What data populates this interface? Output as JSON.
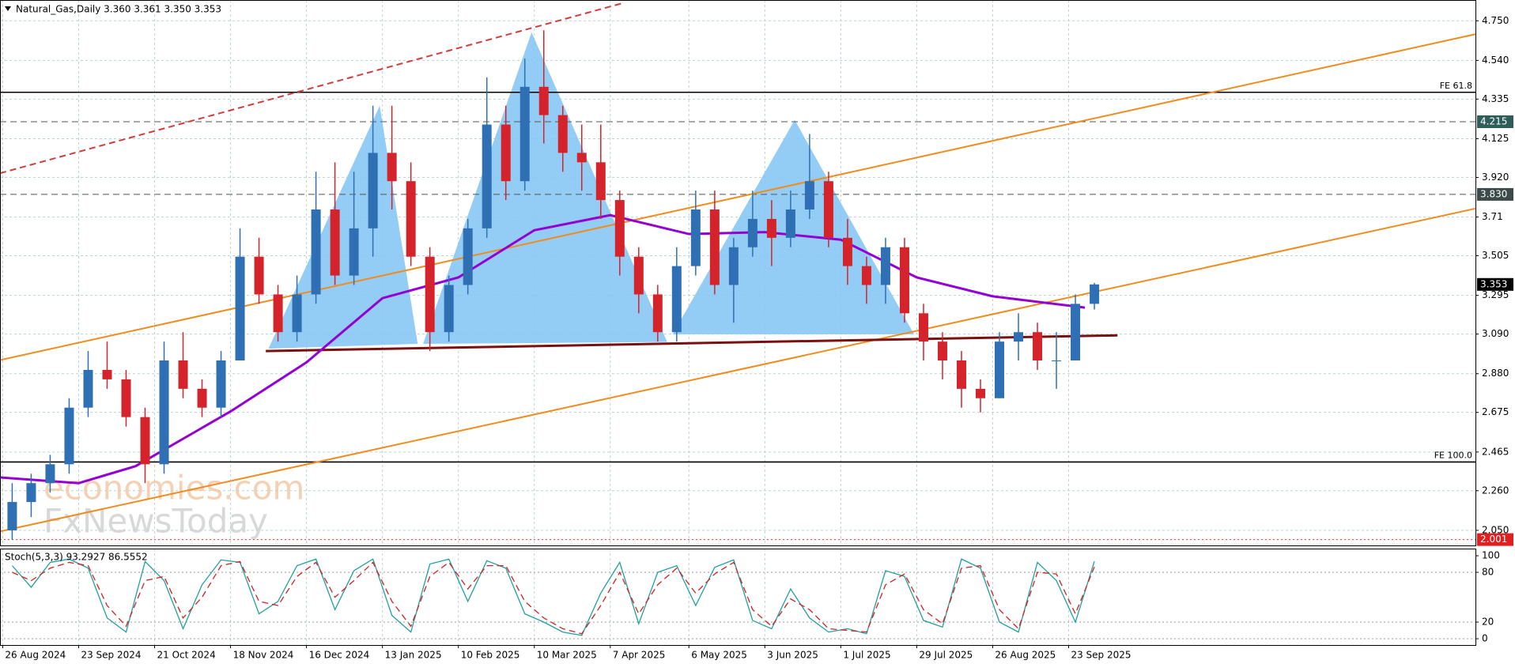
{
  "chart_data": {
    "type": "candlestick",
    "title": "Natural_Gas,Daily  3.360 3.361 3.350 3.353",
    "x": [
      "2024-08-26",
      "2024-09-02",
      "2024-09-09",
      "2024-09-16",
      "2024-09-23",
      "2024-09-30",
      "2024-10-07",
      "2024-10-14",
      "2024-10-21",
      "2024-10-28",
      "2024-11-04",
      "2024-11-11",
      "2024-11-18",
      "2024-11-25",
      "2024-12-02",
      "2024-12-09",
      "2024-12-16",
      "2024-12-23",
      "2024-12-30",
      "2025-01-06",
      "2025-01-13",
      "2025-01-20",
      "2025-01-27",
      "2025-02-03",
      "2025-02-10",
      "2025-02-17",
      "2025-02-24",
      "2025-03-03",
      "2025-03-10",
      "2025-03-17",
      "2025-03-24",
      "2025-03-31",
      "2025-04-07",
      "2025-04-14",
      "2025-04-21",
      "2025-04-28",
      "2025-05-05",
      "2025-05-12",
      "2025-05-19",
      "2025-05-26",
      "2025-06-02",
      "2025-06-09",
      "2025-06-16",
      "2025-06-23",
      "2025-06-30",
      "2025-07-07",
      "2025-07-14",
      "2025-07-21",
      "2025-07-28",
      "2025-08-04",
      "2025-08-11",
      "2025-08-18",
      "2025-08-25",
      "2025-09-01",
      "2025-09-08",
      "2025-09-15",
      "2025-09-22",
      "2025-09-29"
    ],
    "open": [
      2.05,
      2.2,
      2.3,
      2.4,
      2.7,
      2.9,
      2.85,
      2.65,
      2.4,
      2.95,
      2.8,
      2.7,
      2.95,
      3.5,
      3.3,
      3.1,
      3.3,
      3.75,
      3.4,
      3.65,
      4.05,
      3.9,
      3.5,
      3.1,
      3.35,
      3.65,
      4.2,
      3.9,
      4.4,
      4.25,
      4.05,
      4.0,
      3.8,
      3.5,
      3.3,
      3.1,
      3.45,
      3.75,
      3.35,
      3.55,
      3.7,
      3.6,
      3.75,
      3.9,
      3.6,
      3.45,
      3.35,
      3.55,
      3.2,
      3.05,
      2.95,
      2.8,
      2.75,
      3.05,
      3.1,
      2.95,
      2.95,
      3.25
    ],
    "high": [
      2.3,
      2.35,
      2.45,
      2.75,
      3.0,
      3.05,
      2.9,
      2.7,
      3.05,
      3.1,
      2.85,
      3.0,
      3.65,
      3.6,
      3.35,
      3.4,
      3.95,
      4.0,
      3.95,
      4.3,
      4.3,
      4.0,
      3.55,
      3.4,
      3.7,
      4.45,
      4.3,
      4.55,
      4.7,
      4.3,
      4.2,
      4.2,
      3.85,
      3.55,
      3.35,
      3.55,
      3.85,
      3.85,
      3.6,
      3.85,
      3.8,
      3.85,
      4.15,
      3.95,
      3.7,
      3.5,
      3.6,
      3.6,
      3.25,
      3.1,
      3.0,
      2.85,
      3.1,
      3.2,
      3.15,
      3.1,
      3.3,
      3.361
    ],
    "low": [
      2.0,
      2.12,
      2.25,
      2.35,
      2.65,
      2.8,
      2.6,
      2.3,
      2.35,
      2.75,
      2.65,
      2.65,
      2.95,
      3.25,
      3.05,
      3.05,
      3.25,
      3.35,
      3.35,
      3.5,
      3.75,
      3.45,
      3.0,
      3.05,
      3.3,
      3.6,
      3.8,
      3.85,
      4.1,
      3.95,
      3.85,
      3.7,
      3.4,
      3.2,
      3.05,
      3.05,
      3.4,
      3.3,
      3.15,
      3.5,
      3.45,
      3.55,
      3.7,
      3.55,
      3.35,
      3.25,
      3.25,
      3.15,
      2.95,
      2.85,
      2.7,
      2.675,
      2.75,
      2.95,
      2.9,
      2.8,
      2.95,
      3.22
    ],
    "close": [
      2.2,
      2.3,
      2.4,
      2.7,
      2.9,
      2.85,
      2.65,
      2.4,
      2.95,
      2.8,
      2.7,
      2.95,
      3.5,
      3.3,
      3.1,
      3.3,
      3.75,
      3.4,
      3.65,
      4.05,
      3.9,
      3.5,
      3.1,
      3.35,
      3.65,
      4.2,
      3.9,
      4.4,
      4.25,
      4.05,
      4.0,
      3.8,
      3.5,
      3.3,
      3.1,
      3.45,
      3.75,
      3.35,
      3.55,
      3.7,
      3.6,
      3.75,
      3.9,
      3.6,
      3.45,
      3.35,
      3.55,
      3.2,
      3.05,
      2.95,
      2.8,
      2.75,
      3.05,
      3.1,
      2.95,
      2.95,
      3.25,
      3.353
    ],
    "up_color": "#2f6fb3",
    "down_color": "#d4232a",
    "xlim": [
      "2024-08-25",
      "2026-02-20"
    ],
    "xticks": [
      {
        "value": "2024-08-26",
        "label": "26 Aug 2024"
      },
      {
        "value": "2024-09-23",
        "label": "23 Sep 2024"
      },
      {
        "value": "2024-10-21",
        "label": "21 Oct 2024"
      },
      {
        "value": "2024-11-18",
        "label": "18 Nov 2024"
      },
      {
        "value": "2024-12-16",
        "label": "16 Dec 2024"
      },
      {
        "value": "2025-01-13",
        "label": "13 Jan 2025"
      },
      {
        "value": "2025-02-10",
        "label": "10 Feb 2025"
      },
      {
        "value": "2025-03-10",
        "label": "10 Mar 2025"
      },
      {
        "value": "2025-04-07",
        "label": "7 Apr 2025"
      },
      {
        "value": "2025-05-06",
        "label": "6 May 2025"
      },
      {
        "value": "2025-06-03",
        "label": "3 Jun 2025"
      },
      {
        "value": "2025-07-01",
        "label": "1 Jul 2025"
      },
      {
        "value": "2025-07-29",
        "label": "29 Jul 2025"
      },
      {
        "value": "2025-08-26",
        "label": "26 Aug 2025"
      },
      {
        "value": "2025-09-23",
        "label": "23 Sep 2025"
      }
    ],
    "ylim": [
      1.97,
      4.86
    ],
    "yticks": [
      {
        "value": 4.75,
        "label": "4.750"
      },
      {
        "value": 4.54,
        "label": "4.540"
      },
      4.335,
      4.125,
      {
        "value": 3.92,
        "label": "3.920"
      },
      3.71,
      3.505,
      3.295,
      {
        "value": 3.09,
        "label": "3.090"
      },
      {
        "value": 2.88,
        "label": "2.880"
      },
      2.675,
      2.465,
      {
        "value": 2.26,
        "label": "2.260"
      },
      {
        "value": 2.05,
        "label": "2.050"
      }
    ],
    "grid": true,
    "ma": {
      "color": "#9400d3",
      "x": [
        "2024-08-25",
        "2024-09-23",
        "2024-10-14",
        "2024-11-18",
        "2024-12-16",
        "2025-01-13",
        "2025-02-10",
        "2025-03-10",
        "2025-04-07",
        "2025-05-06",
        "2025-06-03",
        "2025-07-01",
        "2025-07-29",
        "2025-08-26",
        "2025-09-29"
      ],
      "values": [
        2.33,
        2.3,
        2.39,
        2.68,
        2.94,
        3.28,
        3.39,
        3.64,
        3.72,
        3.62,
        3.63,
        3.59,
        3.39,
        3.29,
        3.23
      ]
    },
    "levels": [
      {
        "price": 4.371,
        "text": "FE 61.8",
        "color": "#000000",
        "dash": "solid"
      },
      {
        "price": 4.215,
        "tag": "4.215",
        "color": "#555555",
        "dash": "dashed",
        "tag_color": "#2e5e5a"
      },
      {
        "price": 3.83,
        "tag": "3.830",
        "color": "#555555",
        "dash": "dashed",
        "tag_color": "#3c4a4a"
      },
      {
        "price": 2.412,
        "text": "FE 100.0",
        "color": "#000000",
        "dash": "solid"
      },
      {
        "price": 2.001,
        "tag": "2.001",
        "color": "#e03030",
        "dash": "dotted",
        "tag_color": "#e02020"
      }
    ],
    "last_tag_color": "#000000",
    "trendlines": [
      {
        "color": "#f08c1e",
        "dash": "solid",
        "points": [
          {
            "x": "2024-08-25",
            "y": 2.952
          },
          {
            "x": "2026-02-20",
            "y": 4.679
          }
        ]
      },
      {
        "color": "#f08c1e",
        "dash": "solid",
        "points": [
          {
            "x": "2024-08-25",
            "y": 2.044
          },
          {
            "x": "2026-02-20",
            "y": 3.755
          }
        ]
      },
      {
        "color": "#d23c3c",
        "dash": "dashed",
        "points": [
          {
            "x": "2024-08-25",
            "y": 3.942
          },
          {
            "x": "2025-04-11",
            "y": 4.841
          }
        ]
      },
      {
        "color": "#7a1010",
        "dash": "solid",
        "points": [
          {
            "x": "2024-12-01",
            "y": 3.0
          },
          {
            "x": "2025-10-11",
            "y": 3.083
          }
        ]
      }
    ],
    "patterns": [
      {
        "color": "#87c8f5",
        "points": [
          {
            "x": "2024-12-02",
            "y": 3.013
          },
          {
            "x": "2025-01-12",
            "y": 4.3
          },
          {
            "x": "2025-01-26",
            "y": 3.038
          }
        ]
      },
      {
        "color": "#87c8f5",
        "points": [
          {
            "x": "2025-01-28",
            "y": 3.038
          },
          {
            "x": "2025-03-09",
            "y": 4.689
          },
          {
            "x": "2025-04-28",
            "y": 3.048
          }
        ]
      },
      {
        "color": "#87c8f5",
        "points": [
          {
            "x": "2025-04-30",
            "y": 3.089
          },
          {
            "x": "2025-06-14",
            "y": 4.225
          },
          {
            "x": "2025-07-28",
            "y": 3.089
          }
        ]
      }
    ],
    "watermark": [
      "economies.com",
      "FxNewsToday"
    ],
    "stoch": {
      "title": "Stoch(5,3,3) 93.2927 86.5552",
      "ylim": [
        -7.6,
        108.6
      ],
      "yticks": [
        100,
        80,
        20,
        0
      ],
      "series": [
        {
          "color": "#20a0a0",
          "dash": "solid",
          "values": [
            88,
            62,
            92,
            96,
            85,
            25,
            8,
            93,
            70,
            12,
            65,
            95,
            92,
            30,
            45,
            88,
            96,
            35,
            82,
            96,
            28,
            8,
            90,
            96,
            45,
            94,
            85,
            30,
            20,
            8,
            4,
            55,
            92,
            18,
            80,
            88,
            40,
            86,
            95,
            22,
            12,
            60,
            25,
            8,
            12,
            6,
            82,
            75,
            22,
            14,
            96,
            85,
            20,
            8,
            92,
            70,
            20,
            93.2927
          ]
        },
        {
          "color": "#d42020",
          "dash": "dashed",
          "values": [
            80,
            70,
            85,
            92,
            88,
            40,
            15,
            70,
            75,
            25,
            50,
            88,
            93,
            45,
            40,
            75,
            92,
            50,
            70,
            92,
            45,
            15,
            75,
            92,
            60,
            88,
            88,
            45,
            25,
            12,
            6,
            40,
            80,
            30,
            65,
            85,
            55,
            78,
            92,
            35,
            15,
            48,
            35,
            12,
            10,
            8,
            65,
            78,
            35,
            18,
            85,
            88,
            35,
            12,
            80,
            78,
            30,
            86.5552
          ]
        }
      ]
    }
  }
}
